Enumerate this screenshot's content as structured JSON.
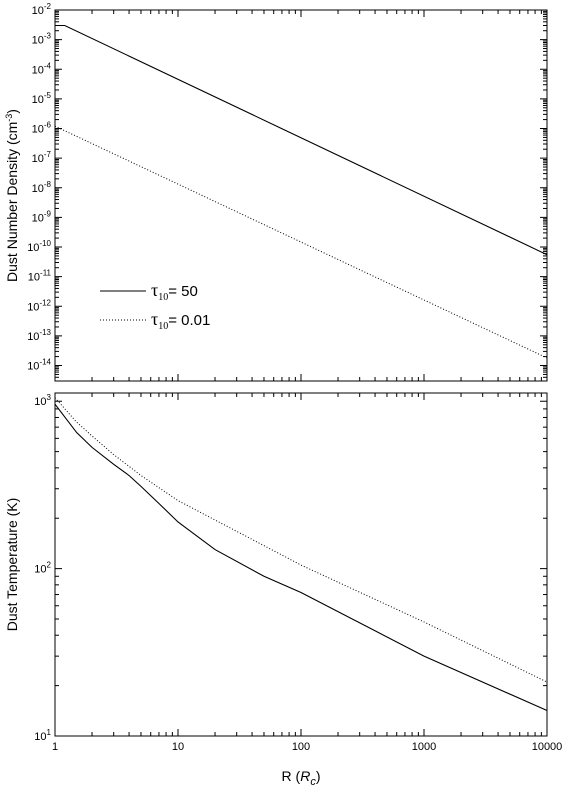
{
  "chart_data": [
    {
      "type": "line",
      "panel": "top",
      "ylabel": "Dust Number Density (cm⁻³)",
      "xscale": "log",
      "yscale": "log",
      "xlim": [
        1,
        10000
      ],
      "ylim": [
        3e-15,
        0.01
      ],
      "x_ticks": [
        "1",
        "10",
        "100",
        "1000",
        "10000"
      ],
      "y_ticks": [
        {
          "base": "10",
          "exp": "-2"
        },
        {
          "base": "10",
          "exp": "-3"
        },
        {
          "base": "10",
          "exp": "-4"
        },
        {
          "base": "10",
          "exp": "-5"
        },
        {
          "base": "10",
          "exp": "-6"
        },
        {
          "base": "10",
          "exp": "-7"
        },
        {
          "base": "10",
          "exp": "-8"
        },
        {
          "base": "10",
          "exp": "-9"
        },
        {
          "base": "10",
          "exp": "-10"
        },
        {
          "base": "10",
          "exp": "-11"
        },
        {
          "base": "10",
          "exp": "-12"
        },
        {
          "base": "10",
          "exp": "-13"
        },
        {
          "base": "10",
          "exp": "-14"
        }
      ],
      "legend": {
        "placement": "lower-left",
        "entries": [
          {
            "tau_sub": "10",
            "text": "= 50",
            "style": "solid"
          },
          {
            "tau_sub": "10",
            "text": "= 0.01",
            "style": "dotted"
          }
        ]
      },
      "series": [
        {
          "style": "solid",
          "x": [
            1,
            1.2,
            10000
          ],
          "y": [
            0.003,
            0.003,
            5.5e-11
          ]
        },
        {
          "style": "dotted",
          "x": [
            1,
            10000
          ],
          "y": [
            1.2e-06,
            1.8e-14
          ]
        }
      ]
    },
    {
      "type": "line",
      "panel": "bottom",
      "xlabel": "R (R_c)",
      "xlabel_parts": {
        "main": "R (",
        "sub": "R",
        "subsub": "c",
        "close": ")"
      },
      "ylabel": "Dust Temperature (K)",
      "xscale": "log",
      "yscale": "log",
      "xlim": [
        1,
        10000
      ],
      "ylim": [
        10,
        1120
      ],
      "x_ticks": [
        "1",
        "10",
        "100",
        "1000",
        "10000"
      ],
      "y_ticks": [
        {
          "base": "10",
          "exp": "3"
        },
        {
          "base": "10",
          "exp": "2"
        },
        {
          "base": "10",
          "exp": "1"
        }
      ],
      "series": [
        {
          "style": "solid",
          "x": [
            1,
            1.5,
            2,
            3,
            4,
            5,
            7,
            10,
            20,
            50,
            100,
            1000,
            10000
          ],
          "y": [
            960,
            650,
            530,
            420,
            360,
            310,
            245,
            190,
            130,
            90,
            72,
            30,
            14.2
          ]
        },
        {
          "style": "dotted",
          "x": [
            1,
            1.5,
            2,
            3,
            5,
            10,
            100,
            1000,
            10000
          ],
          "y": [
            1050,
            750,
            620,
            480,
            360,
            255,
            105,
            48,
            21
          ]
        }
      ]
    }
  ]
}
